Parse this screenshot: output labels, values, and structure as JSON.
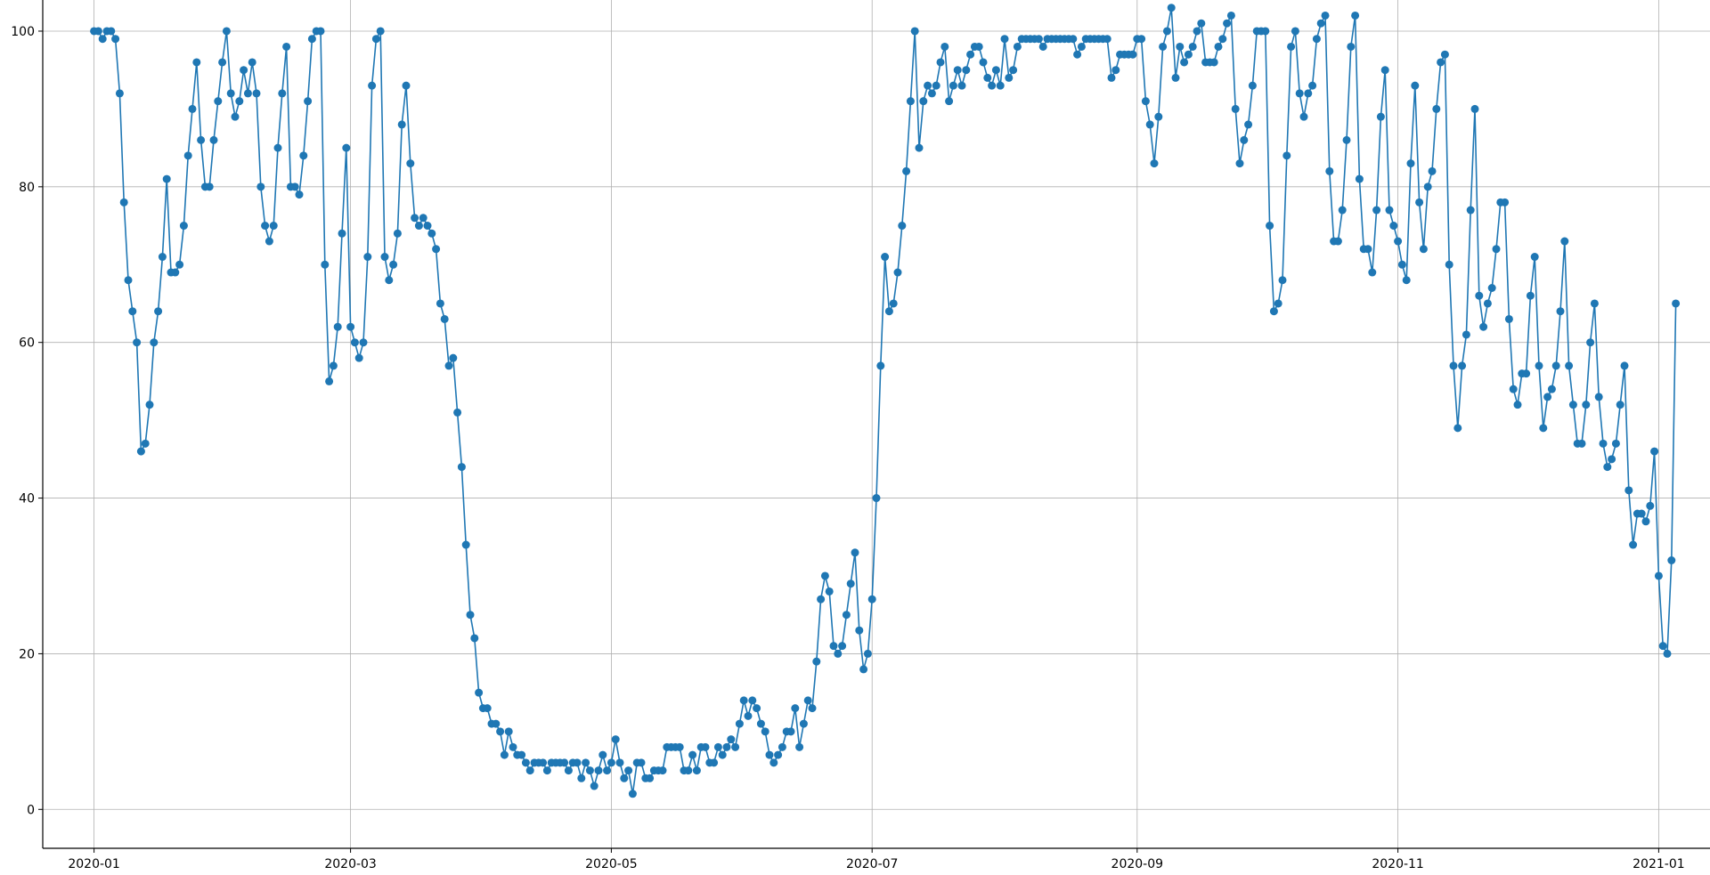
{
  "chart_data": {
    "type": "line",
    "title": "",
    "xlabel": "",
    "ylabel": "",
    "grid": true,
    "marker": "circle",
    "color": "#1f77b4",
    "x_start": "2020-01-01",
    "x_end": "2020-12-31",
    "xlim": [
      "2019-12-20",
      "2021-01-13"
    ],
    "ylim": [
      -5,
      104
    ],
    "x_ticks": [
      {
        "date": "2020-01-01",
        "label": "2020-01"
      },
      {
        "date": "2020-03-01",
        "label": "2020-03"
      },
      {
        "date": "2020-05-01",
        "label": "2020-05"
      },
      {
        "date": "2020-07-01",
        "label": "2020-07"
      },
      {
        "date": "2020-09-01",
        "label": "2020-09"
      },
      {
        "date": "2020-11-01",
        "label": "2020-11"
      },
      {
        "date": "2021-01-01",
        "label": "2021-01"
      }
    ],
    "y_ticks": [
      {
        "value": 0,
        "label": "0"
      },
      {
        "value": 20,
        "label": "20"
      },
      {
        "value": 40,
        "label": "40"
      },
      {
        "value": 60,
        "label": "60"
      },
      {
        "value": 80,
        "label": "80"
      },
      {
        "value": 100,
        "label": "100"
      }
    ],
    "series": [
      {
        "values": [
          100,
          100,
          99,
          100,
          100,
          99,
          92,
          78,
          68,
          64,
          60,
          46,
          47,
          52,
          60,
          64,
          71,
          81,
          69,
          69,
          70,
          75,
          84,
          90,
          96,
          86,
          80,
          80,
          86,
          91,
          96,
          100,
          92,
          89,
          91,
          95,
          92,
          96,
          92,
          80,
          75,
          73,
          75,
          85,
          92,
          98,
          80,
          80,
          79,
          84,
          91,
          99,
          100,
          100,
          70,
          55,
          57,
          62,
          74,
          85,
          62,
          60,
          58,
          60,
          71,
          93,
          99,
          100,
          71,
          68,
          70,
          74,
          88,
          93,
          83,
          76,
          75,
          76,
          75,
          74,
          72,
          65,
          63,
          57,
          58,
          51,
          44,
          34,
          25,
          22,
          15,
          13,
          13,
          11,
          11,
          10,
          7,
          10,
          8,
          7,
          7,
          6,
          5,
          6,
          6,
          6,
          5,
          6,
          6,
          6,
          6,
          5,
          6,
          6,
          4,
          6,
          5,
          3,
          5,
          7,
          5,
          6,
          9,
          6,
          4,
          5,
          2,
          6,
          6,
          4,
          4,
          5,
          5,
          5,
          8,
          8,
          8,
          8,
          5,
          5,
          7,
          5,
          8,
          8,
          6,
          6,
          8,
          7,
          8,
          9,
          8,
          11,
          14,
          12,
          14,
          13,
          11,
          10,
          7,
          6,
          7,
          8,
          10,
          10,
          13,
          8,
          11,
          14,
          13,
          19,
          27,
          30,
          28,
          21,
          20,
          21,
          25,
          29,
          33,
          23,
          18,
          20,
          27,
          40,
          57,
          71,
          64,
          65,
          69,
          75,
          82,
          91,
          100,
          85,
          91,
          93,
          92,
          93,
          96,
          98,
          91,
          93,
          95,
          93,
          95,
          97,
          98,
          98,
          96,
          94,
          93,
          95,
          93,
          99,
          94,
          95,
          98,
          99,
          99,
          99,
          99,
          99,
          98,
          99,
          99,
          99,
          99,
          99,
          99,
          99,
          97,
          98,
          99,
          99,
          99,
          99,
          99,
          99,
          94,
          95,
          97,
          97,
          97,
          97,
          99,
          99,
          91,
          88,
          83,
          89,
          98,
          100,
          103,
          94,
          98,
          96,
          97,
          98,
          100,
          101,
          96,
          96,
          96,
          98,
          99,
          101,
          102,
          90,
          83,
          86,
          88,
          93,
          100,
          100,
          100,
          75,
          64,
          65,
          68,
          84,
          98,
          100,
          92,
          89,
          92,
          93,
          99,
          101,
          102,
          82,
          73,
          73,
          77,
          86,
          98,
          102,
          81,
          72,
          72,
          69,
          77,
          89,
          95,
          77,
          75,
          73,
          70,
          68,
          83,
          93,
          78,
          72,
          80,
          82,
          90,
          96,
          97,
          70,
          57,
          49,
          57,
          61,
          77,
          90,
          66,
          62,
          65,
          67,
          72,
          78,
          78,
          63,
          54,
          52,
          56,
          56,
          66,
          71,
          57,
          49,
          53,
          54,
          57,
          64,
          73,
          57,
          52,
          47,
          47,
          52,
          60,
          65,
          53,
          47,
          44,
          45,
          47,
          52,
          57,
          41,
          34,
          38,
          38,
          37,
          39,
          46,
          30,
          21,
          20,
          32,
          65
        ]
      }
    ]
  }
}
